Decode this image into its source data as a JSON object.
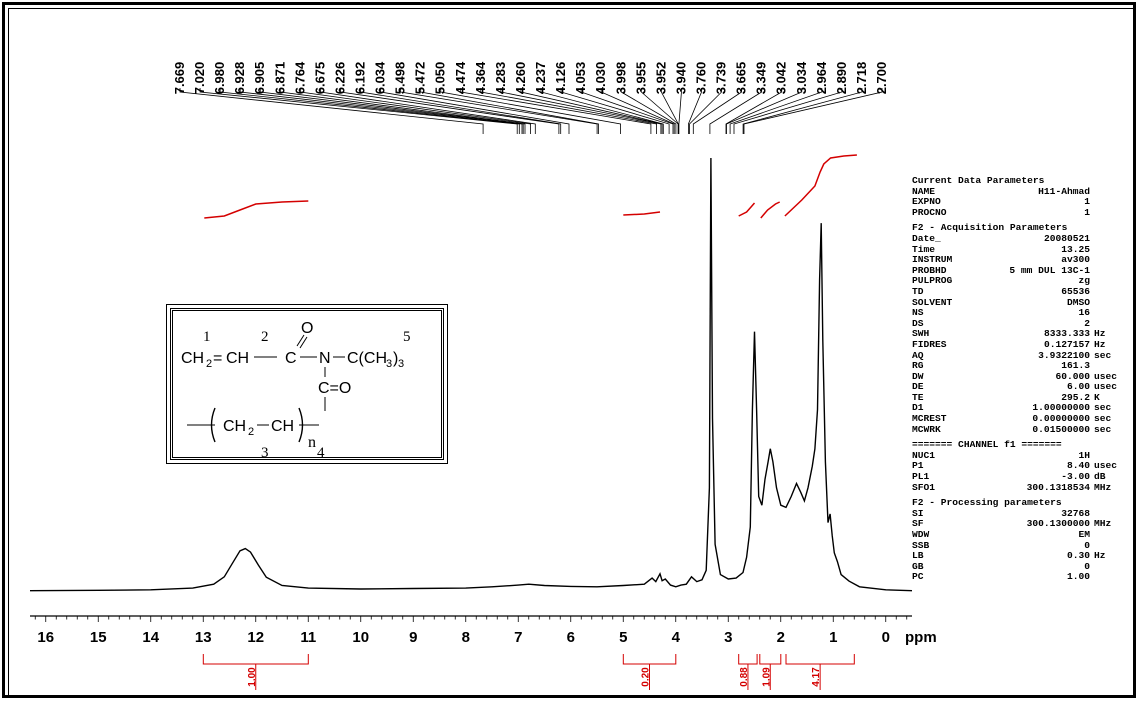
{
  "chart_data": {
    "type": "line",
    "xlabel": "ppm",
    "xlim": [
      16.3,
      -0.5
    ],
    "x_reversed": true,
    "x_ticks": [
      16,
      15,
      14,
      13,
      12,
      11,
      10,
      9,
      8,
      7,
      6,
      5,
      4,
      3,
      2,
      1,
      0
    ],
    "peak_labels": [
      "7.669",
      "7.020",
      "6.980",
      "6.928",
      "6.905",
      "6.871",
      "6.764",
      "6.675",
      "6.226",
      "6.192",
      "6.034",
      "5.498",
      "5.472",
      "5.050",
      "4.474",
      "4.364",
      "4.283",
      "4.260",
      "4.237",
      "4.126",
      "4.053",
      "4.030",
      "3.998",
      "3.955",
      "3.952",
      "3.940",
      "3.760",
      "3.739",
      "3.665",
      "3.349",
      "3.042",
      "3.034",
      "2.964",
      "2.890",
      "2.718",
      "2.700"
    ],
    "series": [
      {
        "x": [
          16.3,
          15.0,
          14.0,
          13.2,
          12.8,
          12.6,
          12.45,
          12.3,
          12.2,
          12.1,
          11.95,
          11.8,
          11.5,
          11.0,
          10.0,
          9.0,
          8.0,
          7.5,
          7.0,
          6.8,
          6.5,
          6.0,
          5.5,
          5.0,
          4.6,
          4.45,
          4.38,
          4.3,
          4.26,
          4.2,
          4.1,
          4.0,
          3.9,
          3.8,
          3.7,
          3.6,
          3.5,
          3.42,
          3.36,
          3.33,
          3.3,
          3.25,
          3.15,
          3.0,
          2.85,
          2.72,
          2.65,
          2.58,
          2.54,
          2.5,
          2.46,
          2.42,
          2.36,
          2.3,
          2.24,
          2.2,
          2.15,
          2.08,
          2.0,
          1.9,
          1.8,
          1.7,
          1.62,
          1.55,
          1.48,
          1.4,
          1.35,
          1.3,
          1.26,
          1.23,
          1.2,
          1.15,
          1.1,
          1.06,
          1.02,
          0.98,
          0.92,
          0.85,
          0.7,
          0.5,
          0.0,
          -0.5
        ],
        "y": [
          0.3,
          0.4,
          0.5,
          0.9,
          1.8,
          3.5,
          6.5,
          9.5,
          10.0,
          9.2,
          6.2,
          3.4,
          1.5,
          0.9,
          0.7,
          0.8,
          0.9,
          1.2,
          1.6,
          1.8,
          1.5,
          1.3,
          1.2,
          1.5,
          1.8,
          3.2,
          2.4,
          4.2,
          2.6,
          3.0,
          1.6,
          1.2,
          1.6,
          1.8,
          3.5,
          2.4,
          2.8,
          5.0,
          24,
          100,
          40,
          11,
          4,
          3,
          3.2,
          4.5,
          8,
          15,
          42,
          60,
          42,
          22,
          20,
          26,
          30,
          33,
          30,
          24,
          20,
          19.5,
          22,
          25,
          23,
          21,
          24,
          29,
          33,
          42,
          72,
          85,
          58,
          30,
          16,
          18,
          13,
          9,
          7,
          4,
          2.5,
          1.2,
          0.5,
          0.3
        ]
      }
    ],
    "integrals": [
      {
        "from": 13.0,
        "to": 11.0,
        "value": "1.00"
      },
      {
        "from": 5.0,
        "to": 4.0,
        "value": "0.20"
      },
      {
        "from": 2.8,
        "to": 2.45,
        "value": "0.88"
      },
      {
        "from": 2.4,
        "to": 2.0,
        "value": "1.09"
      },
      {
        "from": 1.9,
        "to": 0.6,
        "value": "4.17"
      }
    ]
  },
  "structure": {
    "labels": {
      "c1": "1",
      "c2": "2",
      "c3": "3",
      "c4": "4",
      "c5": "5",
      "n": "n"
    },
    "text": {
      "ch2": "CH",
      "sub2": "2",
      "eq": "=",
      "ch": "CH",
      "c": "C",
      "o": "O",
      "n_atom": "N",
      "tbu": "C(CH",
      "sub3": "3",
      "close": ")",
      "c_eq_o": "C=O"
    }
  },
  "params": {
    "current": {
      "heading": "Current Data Parameters",
      "rows": [
        {
          "k": "NAME",
          "v": "H11-Ahmad",
          "u": ""
        },
        {
          "k": "EXPNO",
          "v": "1",
          "u": ""
        },
        {
          "k": "PROCNO",
          "v": "1",
          "u": ""
        }
      ]
    },
    "acq": {
      "heading": "F2 - Acquisition Parameters",
      "rows": [
        {
          "k": "Date_",
          "v": "20080521",
          "u": ""
        },
        {
          "k": "Time",
          "v": "13.25",
          "u": ""
        },
        {
          "k": "INSTRUM",
          "v": "av300",
          "u": ""
        },
        {
          "k": "PROBHD",
          "v": "5 mm DUL 13C-1",
          "u": ""
        },
        {
          "k": "PULPROG",
          "v": "zg",
          "u": ""
        },
        {
          "k": "TD",
          "v": "65536",
          "u": ""
        },
        {
          "k": "SOLVENT",
          "v": "DMSO",
          "u": ""
        },
        {
          "k": "NS",
          "v": "16",
          "u": ""
        },
        {
          "k": "DS",
          "v": "2",
          "u": ""
        },
        {
          "k": "SWH",
          "v": "8333.333",
          "u": "Hz"
        },
        {
          "k": "FIDRES",
          "v": "0.127157",
          "u": "Hz"
        },
        {
          "k": "AQ",
          "v": "3.9322100",
          "u": "sec"
        },
        {
          "k": "RG",
          "v": "161.3",
          "u": ""
        },
        {
          "k": "DW",
          "v": "60.000",
          "u": "usec"
        },
        {
          "k": "DE",
          "v": "6.00",
          "u": "usec"
        },
        {
          "k": "TE",
          "v": "295.2",
          "u": "K"
        },
        {
          "k": "D1",
          "v": "1.00000000",
          "u": "sec"
        },
        {
          "k": "MCREST",
          "v": "0.00000000",
          "u": "sec"
        },
        {
          "k": "MCWRK",
          "v": "0.01500000",
          "u": "sec"
        }
      ]
    },
    "channel": {
      "heading": "======= CHANNEL f1 =======",
      "rows": [
        {
          "k": "NUC1",
          "v": "1H",
          "u": ""
        },
        {
          "k": "P1",
          "v": "8.40",
          "u": "usec"
        },
        {
          "k": "PL1",
          "v": "-3.00",
          "u": "dB"
        },
        {
          "k": "SFO1",
          "v": "300.1318534",
          "u": "MHz"
        }
      ]
    },
    "proc": {
      "heading": "F2 - Processing parameters",
      "rows": [
        {
          "k": "SI",
          "v": "32768",
          "u": ""
        },
        {
          "k": "SF",
          "v": "300.1300000",
          "u": "MHz"
        },
        {
          "k": "WDW",
          "v": "EM",
          "u": ""
        },
        {
          "k": "SSB",
          "v": "0",
          "u": ""
        },
        {
          "k": "LB",
          "v": "0.30",
          "u": "Hz"
        },
        {
          "k": "GB",
          "v": "0",
          "u": ""
        },
        {
          "k": "PC",
          "v": "1.00",
          "u": ""
        }
      ]
    }
  },
  "colors": {
    "trace": "#000000",
    "integral": "#d40000"
  }
}
